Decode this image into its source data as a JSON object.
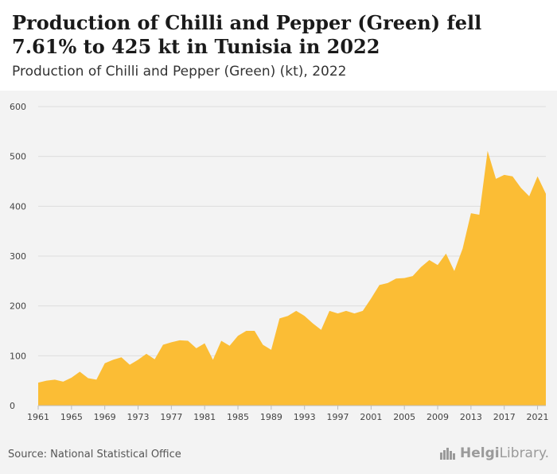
{
  "header": {
    "title": "Production of Chilli and Pepper (Green) fell 7.61% to 425 kt in Tunisia in 2022",
    "subtitle": "Production of Chilli and Pepper (Green) (kt), 2022"
  },
  "footer": {
    "source": "Source: National Statistical Office",
    "brand_bold": "Helgi",
    "brand_light": "Library."
  },
  "colors": {
    "area": "#fbbd35",
    "grid": "#dddddd",
    "axis_text": "#444444",
    "background": "#f3f3f3"
  },
  "chart_data": {
    "type": "area",
    "title": "Production of Chilli and Pepper (Green) (kt), 2022",
    "xlabel": "",
    "ylabel": "",
    "ylim": [
      0,
      600
    ],
    "yticks": [
      0,
      100,
      200,
      300,
      400,
      500,
      600
    ],
    "xticks": [
      1961,
      1965,
      1969,
      1973,
      1977,
      1981,
      1985,
      1989,
      1993,
      1997,
      2001,
      2005,
      2009,
      2013,
      2017,
      2021
    ],
    "grid": true,
    "x": [
      1961,
      1962,
      1963,
      1964,
      1965,
      1966,
      1967,
      1968,
      1969,
      1970,
      1971,
      1972,
      1973,
      1974,
      1975,
      1976,
      1977,
      1978,
      1979,
      1980,
      1981,
      1982,
      1983,
      1984,
      1985,
      1986,
      1987,
      1988,
      1989,
      1990,
      1991,
      1992,
      1993,
      1994,
      1995,
      1996,
      1997,
      1998,
      1999,
      2000,
      2001,
      2002,
      2003,
      2004,
      2005,
      2006,
      2007,
      2008,
      2009,
      2010,
      2011,
      2012,
      2013,
      2014,
      2015,
      2016,
      2017,
      2018,
      2019,
      2020,
      2021,
      2022
    ],
    "series": [
      {
        "values": [
          46,
          50,
          52,
          48,
          56,
          68,
          55,
          52,
          85,
          92,
          97,
          82,
          92,
          104,
          93,
          122,
          127,
          131,
          130,
          115,
          125,
          92,
          130,
          120,
          140,
          150,
          150,
          122,
          112,
          175,
          180,
          190,
          180,
          165,
          152,
          190,
          185,
          190,
          185,
          190,
          215,
          242,
          246,
          255,
          256,
          260,
          278,
          292,
          282,
          305,
          270,
          315,
          386,
          383,
          511,
          455,
          463,
          460,
          437,
          420,
          460,
          425
        ]
      }
    ]
  }
}
